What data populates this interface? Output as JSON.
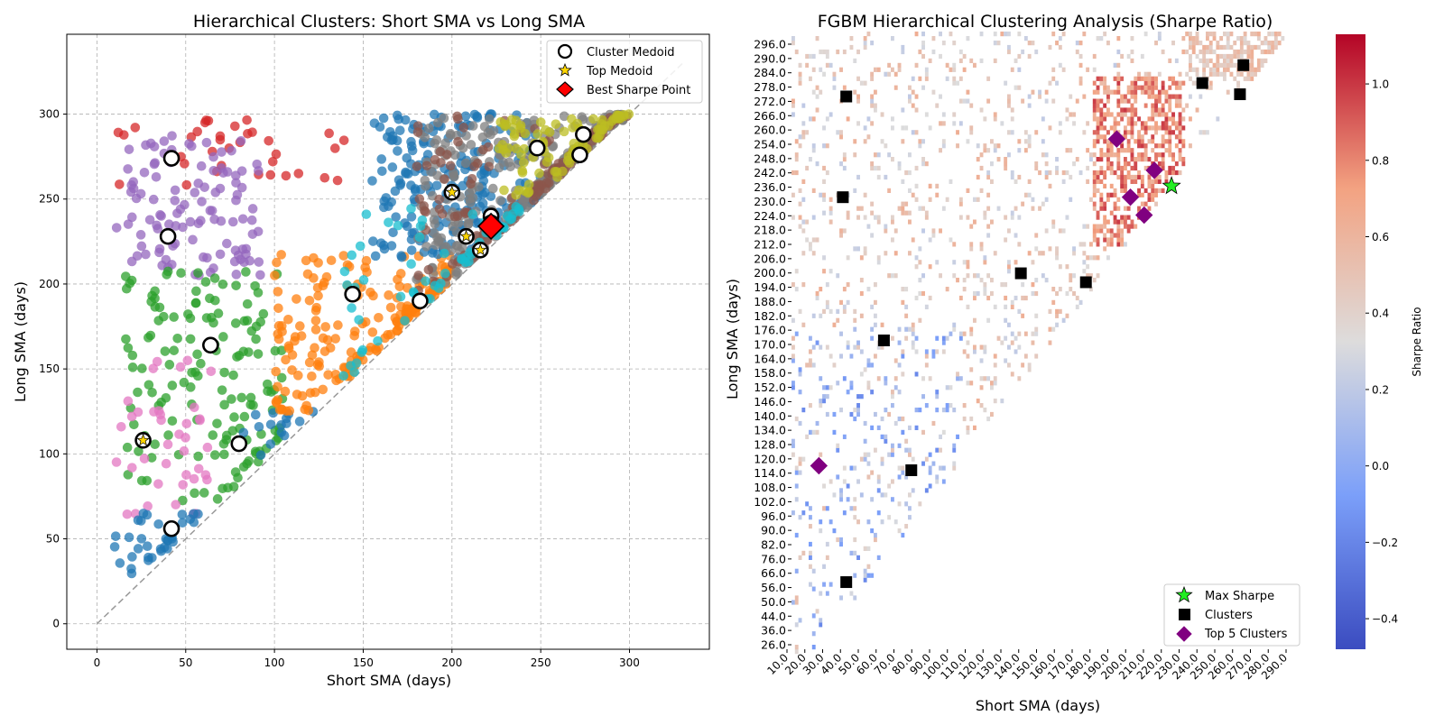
{
  "chart_data": [
    {
      "type": "scatter",
      "title": "Hierarchical Clusters: Short SMA vs Long SMA",
      "xlabel": "Short SMA (days)",
      "ylabel": "Long SMA (days)",
      "xlim": [
        -17,
        345
      ],
      "ylim": [
        -15,
        347
      ],
      "xticks": [
        0,
        50,
        100,
        150,
        200,
        250,
        300
      ],
      "yticks": [
        0,
        50,
        100,
        150,
        200,
        250,
        300
      ],
      "grid": true,
      "diagonal_line": true,
      "legend_position": "top-right",
      "legend": [
        "Cluster Medoid",
        "Top Medoid",
        "Best Sharpe Point"
      ],
      "series": [
        {
          "color": "#d62728",
          "region": "top-left",
          "x_range": [
            10,
            140
          ],
          "y_range": [
            258,
            298
          ]
        },
        {
          "color": "#9467bd",
          "region": "upper-left",
          "x_range": [
            10,
            92
          ],
          "y_range": [
            205,
            290
          ]
        },
        {
          "color": "#2ca02c",
          "region": "middle-left",
          "x_range": [
            15,
            105
          ],
          "y_range": [
            72,
            208
          ]
        },
        {
          "color": "#e377c2",
          "region": "lower-left",
          "x_range": [
            10,
            65
          ],
          "y_range": [
            55,
            160
          ]
        },
        {
          "color": "#1f77b4",
          "region": "bottom-left",
          "x_range": [
            10,
            60
          ],
          "y_range": [
            25,
            65
          ]
        },
        {
          "color": "#1f77b4",
          "region": "near-diagonal-low",
          "x_range": [
            80,
            122
          ],
          "y_range": [
            90,
            125
          ]
        },
        {
          "color": "#ff7f0e",
          "region": "center",
          "x_range": [
            100,
            200
          ],
          "y_range": [
            120,
            218
          ]
        },
        {
          "color": "#1f77b4",
          "region": "upper-center",
          "x_range": [
            155,
            250
          ],
          "y_range": [
            215,
            300
          ]
        },
        {
          "color": "#7f7f7f",
          "region": "upper-diagonal",
          "x_range": [
            180,
            300
          ],
          "y_range": [
            195,
            300
          ]
        },
        {
          "color": "#8c564b",
          "region": "diagonal",
          "x_range": [
            180,
            300
          ],
          "y_range": [
            185,
            300
          ]
        },
        {
          "color": "#bcbd22",
          "region": "top-right",
          "x_range": [
            225,
            300
          ],
          "y_range": [
            250,
            300
          ]
        },
        {
          "color": "#17becf",
          "region": "diagonal-low",
          "x_range": [
            135,
            240
          ],
          "y_range": [
            140,
            245
          ]
        }
      ],
      "medoids": [
        {
          "x": 42,
          "y": 274
        },
        {
          "x": 40,
          "y": 228
        },
        {
          "x": 64,
          "y": 164
        },
        {
          "x": 80,
          "y": 106
        },
        {
          "x": 42,
          "y": 56
        },
        {
          "x": 144,
          "y": 194
        },
        {
          "x": 182,
          "y": 190
        },
        {
          "x": 248,
          "y": 280
        },
        {
          "x": 274,
          "y": 288
        },
        {
          "x": 272,
          "y": 276
        },
        {
          "x": 222,
          "y": 240
        }
      ],
      "top_medoids": [
        {
          "x": 26,
          "y": 108
        },
        {
          "x": 200,
          "y": 254
        },
        {
          "x": 208,
          "y": 228
        },
        {
          "x": 216,
          "y": 220
        },
        {
          "x": 222,
          "y": 236
        }
      ],
      "best_sharpe_point": {
        "x": 222,
        "y": 234
      }
    },
    {
      "type": "heatmap",
      "title": "FGBM Hierarchical Clustering Analysis (Sharpe Ratio)",
      "xlabel": "Short SMA (days)",
      "ylabel": "Long SMA (days)",
      "colorbar_label": "Sharpe Ratio",
      "colorbar_range": [
        -0.48,
        1.13
      ],
      "colorbar_ticks": [
        "1.0",
        "0.8",
        "0.6",
        "0.4",
        "0.2",
        "0.0",
        "−0.2",
        "−0.4"
      ],
      "colormap": "coolwarm",
      "x_ticklabels": [
        "10.0",
        "20.0",
        "30.0",
        "40.0",
        "50.0",
        "60.0",
        "70.0",
        "80.0",
        "90.0",
        "100.0",
        "110.0",
        "120.0",
        "130.0",
        "140.0",
        "150.0",
        "160.0",
        "170.0",
        "180.0",
        "190.0",
        "200.0",
        "210.0",
        "220.0",
        "230.0",
        "240.0",
        "250.0",
        "260.0",
        "270.0",
        "280.0",
        "290.0"
      ],
      "y_ticklabels": [
        "296.0",
        "290.0",
        "284.0",
        "278.0",
        "272.0",
        "266.0",
        "260.0",
        "254.0",
        "248.0",
        "242.0",
        "236.0",
        "230.0",
        "224.0",
        "218.0",
        "212.0",
        "206.0",
        "200.0",
        "194.0",
        "188.0",
        "182.0",
        "176.0",
        "170.0",
        "164.0",
        "158.0",
        "152.0",
        "146.0",
        "140.0",
        "134.0",
        "128.0",
        "120.0",
        "114.0",
        "108.0",
        "102.0",
        "96.0",
        "90.0",
        "82.0",
        "76.0",
        "66.0",
        "56.0",
        "50.0",
        "44.0",
        "36.0",
        "26.0"
      ],
      "legend_position": "bottom-right",
      "legend": [
        "Max Sharpe",
        "Clusters",
        "Top 5 Clusters"
      ],
      "max_sharpe": {
        "x": 232,
        "y": 233
      },
      "clusters": [
        {
          "x": 42,
          "y": 273
        },
        {
          "x": 40,
          "y": 228
        },
        {
          "x": 64,
          "y": 164
        },
        {
          "x": 80,
          "y": 106
        },
        {
          "x": 42,
          "y": 56
        },
        {
          "x": 144,
          "y": 194
        },
        {
          "x": 182,
          "y": 190
        },
        {
          "x": 250,
          "y": 279
        },
        {
          "x": 274,
          "y": 287
        },
        {
          "x": 272,
          "y": 274
        }
      ],
      "top5_clusters": [
        {
          "x": 26,
          "y": 108
        },
        {
          "x": 200,
          "y": 254
        },
        {
          "x": 208,
          "y": 228
        },
        {
          "x": 216,
          "y": 220
        },
        {
          "x": 222,
          "y": 240
        }
      ]
    }
  ]
}
